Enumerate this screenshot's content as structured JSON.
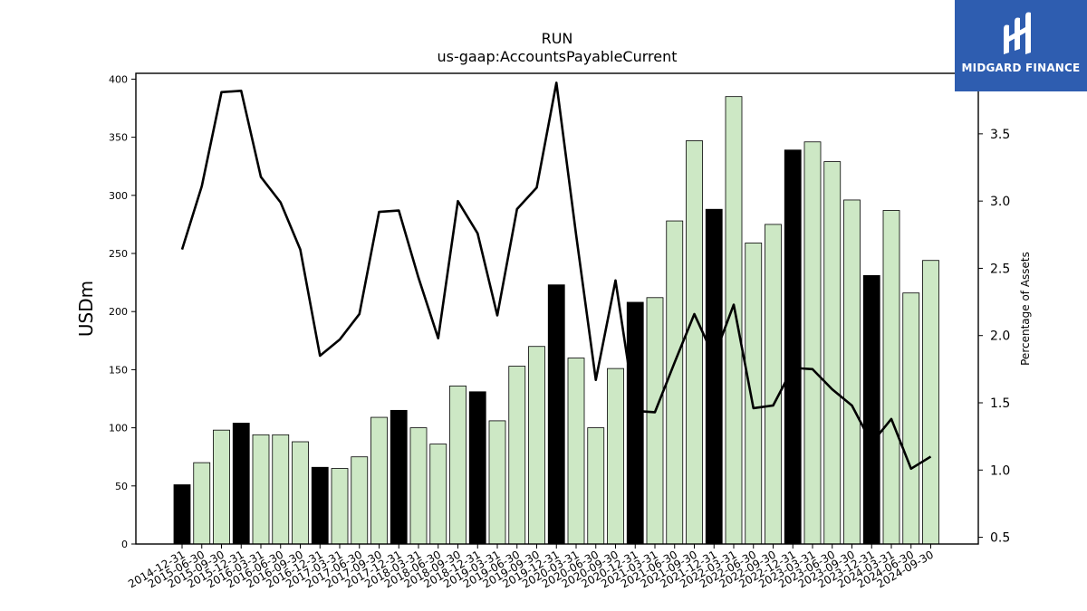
{
  "chart_data": {
    "type": "bar",
    "title": "RUN",
    "subtitle": "us-gaap:AccountsPayableCurrent",
    "ylabel": "USDm",
    "y2label": "Percentage of Assets",
    "ylim": [
      0,
      405
    ],
    "y2lim": [
      0.45,
      3.95
    ],
    "yticks": [
      0,
      50,
      100,
      150,
      200,
      250,
      300,
      350,
      400
    ],
    "y2ticks": [
      0.5,
      1.0,
      1.5,
      2.0,
      2.5,
      3.0,
      3.5
    ],
    "categories": [
      "2014-12-31",
      "2015-06-30",
      "2015-09-30",
      "2015-12-31",
      "2016-03-31",
      "2016-06-30",
      "2016-09-30",
      "2016-12-31",
      "2017-03-31",
      "2017-06-30",
      "2017-09-30",
      "2017-12-31",
      "2018-03-31",
      "2018-06-30",
      "2018-09-30",
      "2018-12-31",
      "2019-03-31",
      "2019-06-30",
      "2019-09-30",
      "2019-12-31",
      "2020-03-31",
      "2020-06-30",
      "2020-09-30",
      "2020-12-31",
      "2021-03-31",
      "2021-06-30",
      "2021-09-30",
      "2021-12-31",
      "2022-03-31",
      "2022-06-30",
      "2022-09-30",
      "2022-12-31",
      "2023-03-31",
      "2023-06-30",
      "2023-09-30",
      "2023-12-31",
      "2024-03-31",
      "2024-06-30",
      "2024-09-30"
    ],
    "series": [
      {
        "kind": "bar",
        "axis": "left",
        "values": [
          51,
          70,
          98,
          104,
          94,
          94,
          88,
          66,
          65,
          75,
          109,
          115,
          100,
          86,
          136,
          131,
          106,
          153,
          170,
          223,
          160,
          100,
          151,
          208,
          212,
          278,
          347,
          288,
          385,
          259,
          275,
          339,
          346,
          329,
          296,
          231,
          287,
          216,
          244
        ],
        "highlight": [
          true,
          false,
          false,
          true,
          false,
          false,
          false,
          true,
          false,
          false,
          false,
          true,
          false,
          false,
          false,
          true,
          false,
          false,
          false,
          true,
          false,
          false,
          false,
          true,
          false,
          false,
          false,
          true,
          false,
          false,
          false,
          true,
          false,
          false,
          false,
          true,
          false,
          false,
          false
        ]
      },
      {
        "kind": "line",
        "axis": "right",
        "values": [
          2.64,
          3.11,
          3.81,
          3.82,
          3.18,
          2.99,
          2.64,
          1.85,
          1.97,
          2.16,
          2.92,
          2.93,
          2.43,
          1.98,
          3.0,
          2.76,
          2.15,
          2.94,
          3.1,
          3.88,
          2.75,
          1.67,
          2.41,
          1.44,
          1.43,
          1.8,
          2.16,
          1.84,
          2.23,
          1.46,
          1.48,
          1.76,
          1.75,
          1.6,
          1.48,
          1.2,
          1.38,
          1.01,
          1.1
        ]
      }
    ],
    "colors": {
      "bar": "#cde8c5",
      "bar_highlight": "#000000",
      "bar_edge": "#000000",
      "line": "#000000"
    },
    "grid": false,
    "legend": "none"
  },
  "logo": {
    "text": "MIDGARD FINANCE",
    "bg": "#2e5db0"
  }
}
